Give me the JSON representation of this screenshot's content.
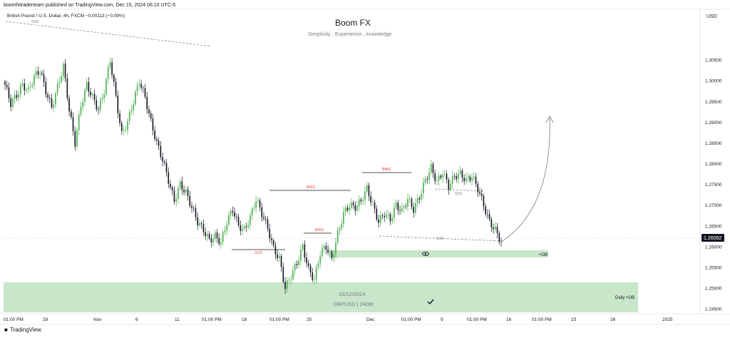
{
  "header": {
    "published": "boomfxtraderteam published on TradingView.com, Dec 15, 2024 06:10 UTC-5",
    "instrument": "British Pound / U.S. Dollar, 4h, FXCM  −0.00113 (−0.09%)"
  },
  "brand": {
    "name": "TradingView",
    "icon": "tradingview-logo-icon"
  },
  "chart_data": {
    "type": "candlestick",
    "title": "Boom FX",
    "subtitle": "Simplicity , Experience , knowledge",
    "currency": "USD",
    "ylim": [
      1.2445,
      1.31
    ],
    "y_ticks": [
      "1.30500",
      "1.30000",
      "1.29500",
      "1.29000",
      "1.28500",
      "1.28000",
      "1.27500",
      "1.27000",
      "1.26500",
      "1.26000",
      "1.25500",
      "1.25000",
      "1.24500"
    ],
    "last_price": "1.26092",
    "x_ticks": [
      "01:00 PM",
      "28",
      "Nov",
      "6",
      "11",
      "01:00 PM",
      "18",
      "01:00 PM",
      "25",
      "Dec",
      "01:00 PM",
      "9",
      "01:00 PM",
      "16",
      "01:00 PM",
      "23",
      "26",
      "2025"
    ],
    "colors": {
      "up": "#4caf50",
      "down": "#131722",
      "zone": "#c8e6c9",
      "label_red": "#e53935"
    },
    "price_path": [
      1.299,
      1.2945,
      1.2965,
      1.299,
      1.2975,
      1.301,
      1.3025,
      1.2975,
      1.2935,
      1.2985,
      1.3035,
      1.293,
      1.285,
      1.294,
      1.299,
      1.296,
      1.293,
      1.2975,
      1.305,
      1.296,
      1.287,
      1.29,
      1.295,
      1.3,
      1.296,
      1.29,
      1.285,
      1.281,
      1.276,
      1.271,
      1.275,
      1.273,
      1.2695,
      1.266,
      1.264,
      1.2615,
      1.2625,
      1.261,
      1.266,
      1.269,
      1.265,
      1.264,
      1.267,
      1.2715,
      1.268,
      1.2645,
      1.2595,
      1.257,
      1.25,
      1.253,
      1.256,
      1.26,
      1.2545,
      1.252,
      1.2585,
      1.26,
      1.257,
      1.263,
      1.268,
      1.27,
      1.2695,
      1.271,
      1.274,
      1.27,
      1.266,
      1.268,
      1.2665,
      1.27,
      1.2685,
      1.2715,
      1.269,
      1.272,
      1.276,
      1.279,
      1.2755,
      1.278,
      1.2745,
      1.277,
      1.2775,
      1.276,
      1.277,
      1.274,
      1.27,
      1.266,
      1.264,
      1.261
    ],
    "zones": [
      {
        "label": "+OB",
        "y_top": 1.2575,
        "y_bottom": 1.2567
      },
      {
        "label": "Daily +OB",
        "y_top": 1.251,
        "y_bottom": 1.2443
      }
    ],
    "structure_labels": [
      {
        "text": "MSS",
        "price": 1.2715
      },
      {
        "text": "MSS",
        "price": 1.2615
      },
      {
        "text": "BMS",
        "price": 1.275
      },
      {
        "text": "XXX",
        "price": 1.259
      }
    ],
    "liquidity_labels": [
      "SSS",
      "SSS",
      "SSS"
    ],
    "annotation": {
      "date": "13/12/2024",
      "symbol": "GBPUSD | 240M"
    }
  }
}
